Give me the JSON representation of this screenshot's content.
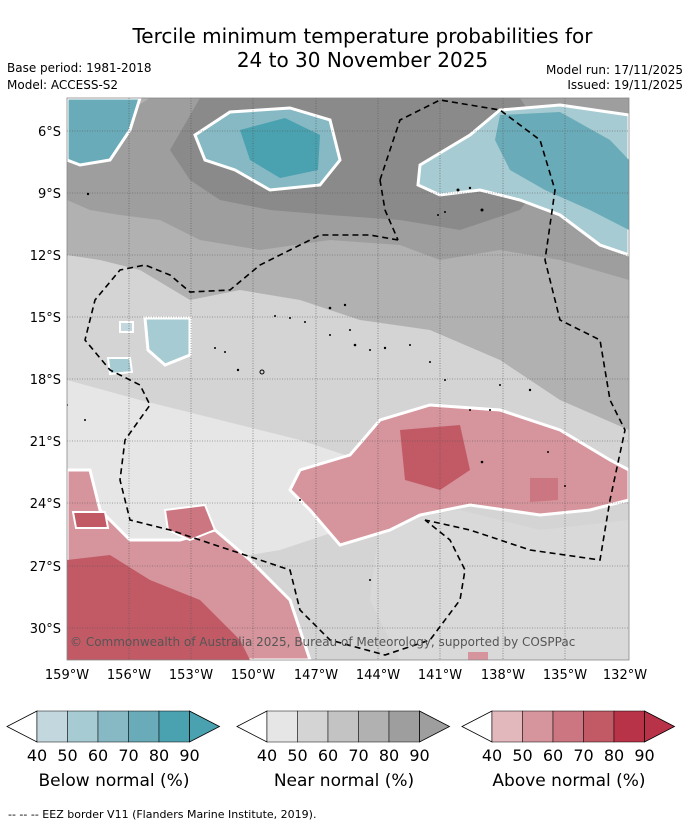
{
  "title": {
    "line1": "Tercile minimum temperature probabilities for",
    "line2": "24 to 30 November 2025"
  },
  "header": {
    "base_period": "Base period: 1981-2018",
    "model": "Model: ACCESS-S2",
    "model_run": "Model run: 17/11/2025",
    "issued": "Issued: 19/11/2025"
  },
  "map": {
    "lon_labels": [
      "159°W",
      "156°W",
      "153°W",
      "150°W",
      "147°W",
      "144°W",
      "141°W",
      "138°W",
      "135°W",
      "132°W"
    ],
    "lat_labels": [
      "6°S",
      "9°S",
      "12°S",
      "15°S",
      "18°S",
      "21°S",
      "24°S",
      "27°S",
      "30°S"
    ],
    "copyright": "© Commonwealth of Australia 2025, Bureau of Meteorology, supported by COSPPac"
  },
  "legend": {
    "ticks": [
      "40",
      "50",
      "60",
      "70",
      "80",
      "90"
    ],
    "groups": [
      {
        "label": "Below normal (%)",
        "colors": [
          "#c3d8de",
          "#a6cbd2",
          "#87b9c4",
          "#69abb8",
          "#4aa1b0"
        ]
      },
      {
        "label": "Near normal (%)",
        "colors": [
          "#e6e6e6",
          "#d4d4d4",
          "#c3c3c3",
          "#b1b1b1",
          "#9e9e9e"
        ]
      },
      {
        "label": "Above normal (%)",
        "colors": [
          "#e3b8bd",
          "#d6959d",
          "#cb7680",
          "#c25a66",
          "#b83248"
        ]
      }
    ]
  },
  "footer": "--  --  -- EEZ border V11 (Flanders Marine Institute, 2019)."
}
